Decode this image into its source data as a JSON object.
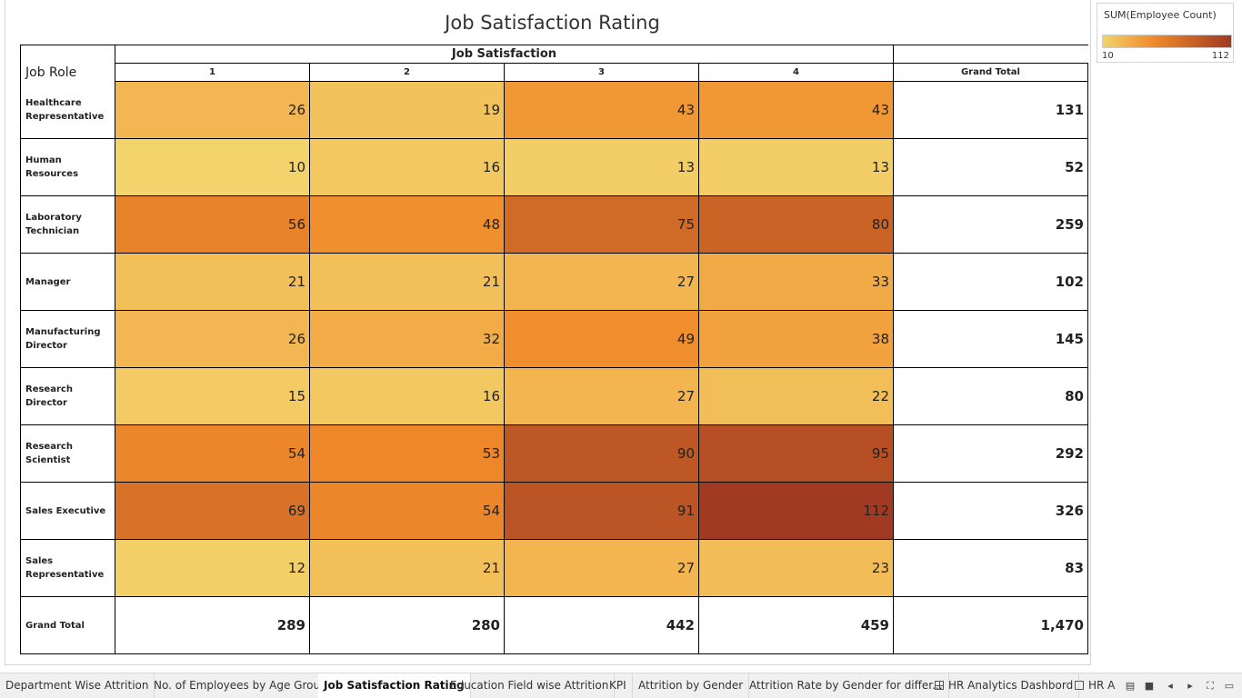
{
  "title": "Job Satisfaction Rating",
  "header": {
    "row_label": "Job Role",
    "group_label": "Job Satisfaction",
    "columns": [
      "1",
      "2",
      "3",
      "4"
    ],
    "total_label": "Grand Total"
  },
  "rows": [
    {
      "role": "Healthcare Representative",
      "values": [
        26,
        19,
        43,
        43
      ],
      "total": "131"
    },
    {
      "role": "Human Resources",
      "values": [
        10,
        16,
        13,
        13
      ],
      "total": "52"
    },
    {
      "role": "Laboratory Technician",
      "values": [
        56,
        48,
        75,
        80
      ],
      "total": "259"
    },
    {
      "role": "Manager",
      "values": [
        21,
        21,
        27,
        33
      ],
      "total": "102"
    },
    {
      "role": "Manufacturing Director",
      "values": [
        26,
        32,
        49,
        38
      ],
      "total": "145"
    },
    {
      "role": "Research Director",
      "values": [
        15,
        16,
        27,
        22
      ],
      "total": "80"
    },
    {
      "role": "Research Scientist",
      "values": [
        54,
        53,
        90,
        95
      ],
      "total": "292"
    },
    {
      "role": "Sales Executive",
      "values": [
        69,
        54,
        91,
        112
      ],
      "total": "326"
    },
    {
      "role": "Sales Representative",
      "values": [
        12,
        21,
        27,
        23
      ],
      "total": "83"
    }
  ],
  "grand_total_row": {
    "label": "Grand Total",
    "values": [
      "289",
      "280",
      "442",
      "459"
    ],
    "total": "1,470"
  },
  "legend": {
    "title": "SUM(Employee Count)",
    "min": "10",
    "max": "112"
  },
  "colors": {
    "low": "#f3d36b",
    "mid": "#f08a2a",
    "high": "#a03a22"
  },
  "tabs": [
    {
      "label": "Department Wise Attrition",
      "icon": ""
    },
    {
      "label": "No. of Employees by Age Group",
      "icon": ""
    },
    {
      "label": "Job Satisfaction Rating",
      "icon": "",
      "active": true
    },
    {
      "label": "Education Field wise Attrition",
      "icon": ""
    },
    {
      "label": "KPI",
      "icon": ""
    },
    {
      "label": "Attrition by Gender",
      "icon": ""
    },
    {
      "label": "Attrition Rate by Gender for differ...",
      "icon": ""
    },
    {
      "label": "HR Analytics Dashbord",
      "icon": "dashboard-grid-icon"
    },
    {
      "label": "HR A",
      "icon": "story-icon"
    }
  ]
}
